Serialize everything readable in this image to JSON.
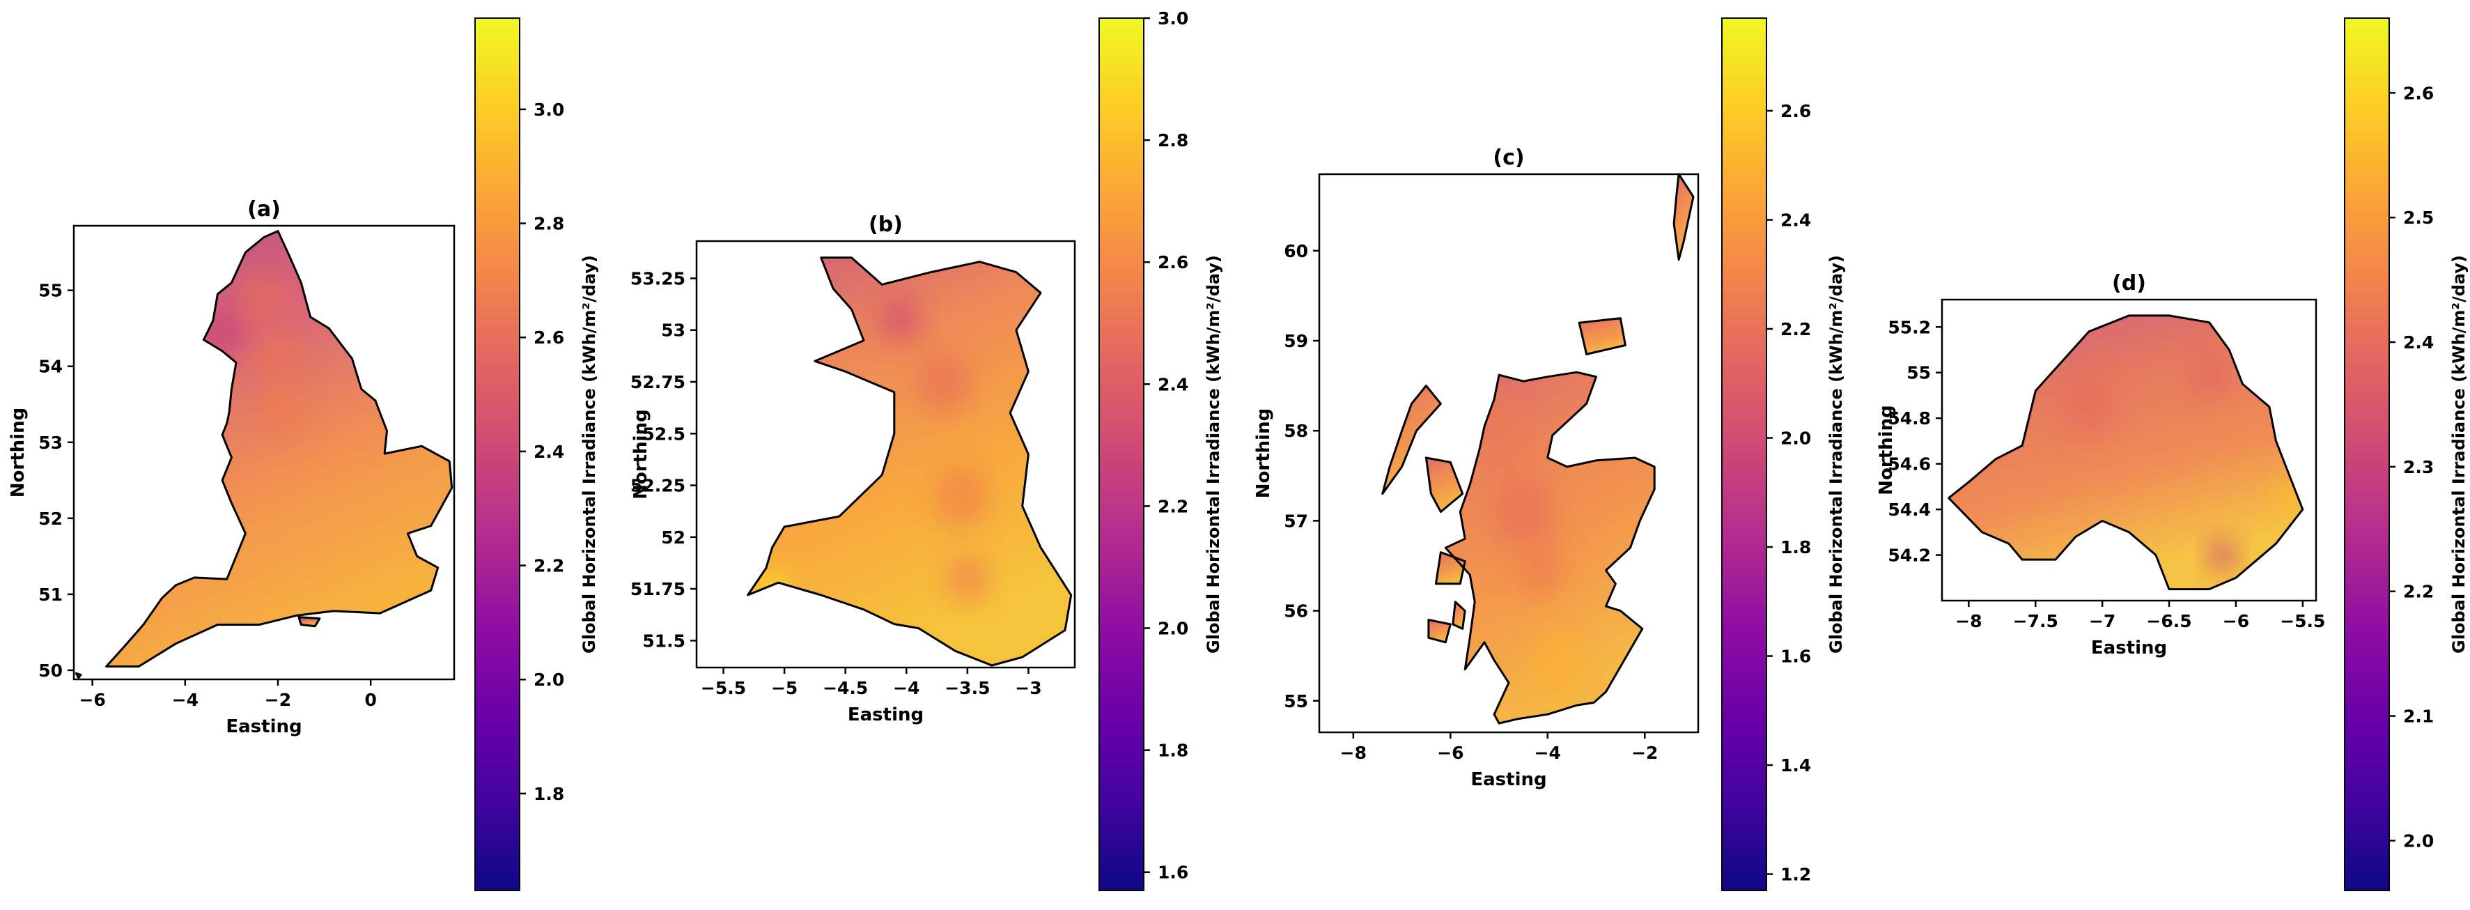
{
  "colors": {
    "cmap": [
      "#0d0887",
      "#41049d",
      "#6a00a8",
      "#8f0da4",
      "#b12a90",
      "#cc4778",
      "#e16462",
      "#f2844b",
      "#fca636",
      "#fcce25",
      "#f0f921"
    ],
    "land_colors": {
      "a": [
        "#b94f86",
        "#d8677a",
        "#f29250",
        "#f7b23e"
      ],
      "b": [
        "#d35d7a",
        "#ee8a58",
        "#f8a83e",
        "#f6c43b"
      ],
      "c": [
        "#dc6a70",
        "#ec8458",
        "#f49a4b",
        "#f5b845"
      ],
      "d": [
        "#cf5f82",
        "#e57860",
        "#f08c55",
        "#f6c444"
      ]
    },
    "coast": "#000000"
  },
  "chart_data": [
    {
      "type": "heatmap",
      "title": "(a)",
      "xlabel": "Easting",
      "ylabel": "Northing",
      "xlim": [
        -6.4,
        1.8
      ],
      "ylim": [
        49.88,
        55.85
      ],
      "xticks": [
        -6,
        -4,
        -2,
        0
      ],
      "yticks": [
        50,
        51,
        52,
        53,
        54,
        55
      ],
      "colorbar": {
        "label": "Global Horizontal Irradiance (kWh/m²/day)",
        "min": 1.63,
        "max": 3.16,
        "ticks": [
          1.8,
          2.0,
          2.2,
          2.4,
          2.6,
          2.8,
          3.0
        ]
      },
      "outline": [
        [
          -5.7,
          50.05
        ],
        [
          -5.0,
          50.05
        ],
        [
          -4.2,
          50.35
        ],
        [
          -3.3,
          50.6
        ],
        [
          -2.4,
          50.6
        ],
        [
          -1.6,
          50.72
        ],
        [
          -0.8,
          50.78
        ],
        [
          0.2,
          50.75
        ],
        [
          1.3,
          51.05
        ],
        [
          1.45,
          51.35
        ],
        [
          1.0,
          51.5
        ],
        [
          0.8,
          51.8
        ],
        [
          1.3,
          51.9
        ],
        [
          1.75,
          52.4
        ],
        [
          1.7,
          52.75
        ],
        [
          1.1,
          52.95
        ],
        [
          0.3,
          52.85
        ],
        [
          0.35,
          53.15
        ],
        [
          0.1,
          53.55
        ],
        [
          -0.2,
          53.7
        ],
        [
          -0.4,
          54.1
        ],
        [
          -0.9,
          54.5
        ],
        [
          -1.3,
          54.65
        ],
        [
          -1.5,
          55.1
        ],
        [
          -1.75,
          55.45
        ],
        [
          -2.0,
          55.78
        ],
        [
          -2.3,
          55.7
        ],
        [
          -2.7,
          55.5
        ],
        [
          -3.0,
          55.1
        ],
        [
          -3.3,
          54.95
        ],
        [
          -3.4,
          54.6
        ],
        [
          -3.6,
          54.35
        ],
        [
          -3.2,
          54.2
        ],
        [
          -2.9,
          54.05
        ],
        [
          -3.0,
          53.7
        ],
        [
          -3.05,
          53.4
        ],
        [
          -3.1,
          53.25
        ],
        [
          -3.2,
          53.1
        ],
        [
          -3.0,
          52.8
        ],
        [
          -3.2,
          52.5
        ],
        [
          -3.0,
          52.2
        ],
        [
          -2.7,
          51.8
        ],
        [
          -3.1,
          51.2
        ],
        [
          -3.8,
          51.22
        ],
        [
          -4.2,
          51.12
        ],
        [
          -4.5,
          50.95
        ],
        [
          -4.9,
          50.6
        ],
        [
          -5.3,
          50.32
        ],
        [
          -5.7,
          50.05
        ]
      ],
      "islands": [
        [
          [
            -1.55,
            50.7
          ],
          [
            -1.1,
            50.68
          ],
          [
            -1.2,
            50.58
          ],
          [
            -1.5,
            50.6
          ],
          [
            -1.55,
            50.7
          ]
        ],
        [
          [
            -6.35,
            49.96
          ],
          [
            -6.25,
            49.94
          ],
          [
            -6.3,
            49.9
          ],
          [
            -6.35,
            49.96
          ]
        ]
      ],
      "blobs": [
        {
          "x": -3.2,
          "y": 54.45,
          "r": 0.45,
          "value": 2.38
        },
        {
          "x": -2.3,
          "y": 54.9,
          "r": 0.55,
          "value": 2.58
        },
        {
          "x": -2.0,
          "y": 54.1,
          "r": 0.5,
          "value": 2.62
        },
        {
          "x": -1.9,
          "y": 53.4,
          "r": 0.5,
          "value": 2.66
        }
      ]
    },
    {
      "type": "heatmap",
      "title": "(b)",
      "xlabel": "Easting",
      "ylabel": "Northing",
      "xlim": [
        -5.72,
        -2.62
      ],
      "ylim": [
        51.37,
        53.43
      ],
      "xticks": [
        -5.5,
        -5.0,
        -4.5,
        -4.0,
        -3.5,
        -3.0
      ],
      "yticks": [
        51.5,
        51.75,
        52.0,
        52.25,
        52.5,
        52.75,
        53.0,
        53.25
      ],
      "colorbar": {
        "label": "Global Horizontal Irradiance (kWh/m²/day)",
        "min": 1.57,
        "max": 3.0,
        "ticks": [
          1.6,
          1.8,
          2.0,
          2.2,
          2.4,
          2.6,
          2.8,
          3.0
        ]
      },
      "outline": [
        [
          -5.3,
          51.72
        ],
        [
          -5.05,
          51.78
        ],
        [
          -4.7,
          51.72
        ],
        [
          -4.35,
          51.65
        ],
        [
          -4.1,
          51.58
        ],
        [
          -3.9,
          51.56
        ],
        [
          -3.6,
          51.45
        ],
        [
          -3.3,
          51.38
        ],
        [
          -3.05,
          51.42
        ],
        [
          -2.7,
          51.55
        ],
        [
          -2.65,
          51.72
        ],
        [
          -2.9,
          51.95
        ],
        [
          -3.05,
          52.15
        ],
        [
          -3.0,
          52.4
        ],
        [
          -3.15,
          52.6
        ],
        [
          -3.0,
          52.8
        ],
        [
          -3.1,
          53.0
        ],
        [
          -2.9,
          53.18
        ],
        [
          -3.1,
          53.28
        ],
        [
          -3.4,
          53.33
        ],
        [
          -3.8,
          53.28
        ],
        [
          -4.2,
          53.22
        ],
        [
          -4.45,
          53.35
        ],
        [
          -4.7,
          53.35
        ],
        [
          -4.6,
          53.2
        ],
        [
          -4.45,
          53.1
        ],
        [
          -4.35,
          52.95
        ],
        [
          -4.75,
          52.85
        ],
        [
          -4.5,
          52.8
        ],
        [
          -4.1,
          52.7
        ],
        [
          -4.1,
          52.5
        ],
        [
          -4.2,
          52.3
        ],
        [
          -4.55,
          52.1
        ],
        [
          -5.0,
          52.05
        ],
        [
          -5.1,
          51.95
        ],
        [
          -5.15,
          51.85
        ],
        [
          -5.3,
          51.72
        ]
      ],
      "islands": [],
      "blobs": [
        {
          "x": -4.05,
          "y": 53.05,
          "r": 0.16,
          "value": 2.33
        },
        {
          "x": -3.7,
          "y": 52.75,
          "r": 0.22,
          "value": 2.5
        },
        {
          "x": -3.55,
          "y": 52.2,
          "r": 0.22,
          "value": 2.58
        },
        {
          "x": -3.5,
          "y": 51.8,
          "r": 0.16,
          "value": 2.56
        },
        {
          "x": -5.1,
          "y": 51.75,
          "r": 0.14,
          "value": 2.92
        }
      ]
    },
    {
      "type": "heatmap",
      "title": "(c)",
      "xlabel": "Easting",
      "ylabel": "Northing",
      "xlim": [
        -8.7,
        -0.9
      ],
      "ylim": [
        54.65,
        60.85
      ],
      "xticks": [
        -8,
        -6,
        -4,
        -2
      ],
      "yticks": [
        55,
        56,
        57,
        58,
        59,
        60
      ],
      "colorbar": {
        "label": "Global Horizontal Irradiance (kWh/m²/day)",
        "min": 1.17,
        "max": 2.77,
        "ticks": [
          1.2,
          1.4,
          1.6,
          1.8,
          2.0,
          2.2,
          2.4,
          2.6
        ]
      },
      "outline": [
        [
          -5.0,
          54.75
        ],
        [
          -4.6,
          54.8
        ],
        [
          -4.0,
          54.85
        ],
        [
          -3.4,
          54.95
        ],
        [
          -3.05,
          54.98
        ],
        [
          -2.8,
          55.1
        ],
        [
          -2.05,
          55.8
        ],
        [
          -2.5,
          56.0
        ],
        [
          -2.8,
          56.05
        ],
        [
          -2.6,
          56.3
        ],
        [
          -2.8,
          56.45
        ],
        [
          -2.3,
          56.7
        ],
        [
          -2.1,
          57.0
        ],
        [
          -1.8,
          57.35
        ],
        [
          -1.8,
          57.6
        ],
        [
          -2.2,
          57.7
        ],
        [
          -3.0,
          57.67
        ],
        [
          -3.6,
          57.6
        ],
        [
          -4.0,
          57.7
        ],
        [
          -3.9,
          57.95
        ],
        [
          -3.2,
          58.3
        ],
        [
          -3.0,
          58.6
        ],
        [
          -3.4,
          58.65
        ],
        [
          -4.0,
          58.6
        ],
        [
          -4.5,
          58.55
        ],
        [
          -5.0,
          58.62
        ],
        [
          -5.1,
          58.35
        ],
        [
          -5.3,
          58.05
        ],
        [
          -5.4,
          57.8
        ],
        [
          -5.6,
          57.4
        ],
        [
          -5.8,
          57.1
        ],
        [
          -5.7,
          56.8
        ],
        [
          -6.1,
          56.7
        ],
        [
          -5.6,
          56.4
        ],
        [
          -5.5,
          56.1
        ],
        [
          -5.6,
          55.7
        ],
        [
          -5.7,
          55.35
        ],
        [
          -5.3,
          55.65
        ],
        [
          -5.1,
          55.45
        ],
        [
          -4.8,
          55.2
        ],
        [
          -5.1,
          54.85
        ],
        [
          -5.0,
          54.75
        ]
      ],
      "islands": [
        [
          [
            -6.5,
            58.5
          ],
          [
            -6.2,
            58.3
          ],
          [
            -6.7,
            58.0
          ],
          [
            -7.0,
            57.6
          ],
          [
            -7.4,
            57.3
          ],
          [
            -7.25,
            57.6
          ],
          [
            -7.0,
            58.0
          ],
          [
            -6.8,
            58.3
          ],
          [
            -6.5,
            58.5
          ]
        ],
        [
          [
            -6.5,
            57.7
          ],
          [
            -6.0,
            57.65
          ],
          [
            -5.75,
            57.3
          ],
          [
            -6.2,
            57.1
          ],
          [
            -6.4,
            57.3
          ],
          [
            -6.5,
            57.7
          ]
        ],
        [
          [
            -6.2,
            56.65
          ],
          [
            -5.7,
            56.55
          ],
          [
            -5.8,
            56.3
          ],
          [
            -6.3,
            56.3
          ],
          [
            -6.2,
            56.65
          ]
        ],
        [
          [
            -6.45,
            55.9
          ],
          [
            -6.0,
            55.85
          ],
          [
            -6.1,
            55.65
          ],
          [
            -6.45,
            55.7
          ],
          [
            -6.45,
            55.9
          ]
        ],
        [
          [
            -5.9,
            56.1
          ],
          [
            -5.7,
            56.0
          ],
          [
            -5.75,
            55.8
          ],
          [
            -5.95,
            55.85
          ],
          [
            -5.9,
            56.1
          ]
        ],
        [
          [
            -3.35,
            59.2
          ],
          [
            -2.5,
            59.25
          ],
          [
            -2.4,
            58.95
          ],
          [
            -3.2,
            58.85
          ],
          [
            -3.35,
            59.2
          ]
        ],
        [
          [
            -1.3,
            60.85
          ],
          [
            -1.0,
            60.6
          ],
          [
            -1.2,
            60.1
          ],
          [
            -1.3,
            59.9
          ],
          [
            -1.4,
            60.3
          ],
          [
            -1.35,
            60.6
          ],
          [
            -1.3,
            60.85
          ]
        ]
      ],
      "blobs": [
        {
          "x": -4.5,
          "y": 57.1,
          "r": 0.6,
          "value": 2.2
        },
        {
          "x": -4.2,
          "y": 56.5,
          "r": 0.5,
          "value": 2.26
        },
        {
          "x": -3.8,
          "y": 55.4,
          "r": 0.5,
          "value": 2.48
        },
        {
          "x": -5.0,
          "y": 58.1,
          "r": 0.4,
          "value": 2.24
        }
      ]
    },
    {
      "type": "heatmap",
      "title": "(d)",
      "xlabel": "Easting",
      "ylabel": "Northing",
      "xlim": [
        -8.2,
        -5.4
      ],
      "ylim": [
        54.0,
        55.32
      ],
      "xticks": [
        -8.0,
        -7.5,
        -7.0,
        -6.5,
        -6.0,
        -5.5
      ],
      "yticks": [
        54.2,
        54.4,
        54.6,
        54.8,
        55.0,
        55.2
      ],
      "colorbar": {
        "label": "Global Horizontal Irradiance (kWh/m²/day)",
        "min": 1.96,
        "max": 2.66,
        "ticks": [
          2.0,
          2.1,
          2.2,
          2.3,
          2.4,
          2.5,
          2.6
        ]
      },
      "outline": [
        [
          -8.15,
          54.45
        ],
        [
          -8.0,
          54.52
        ],
        [
          -7.8,
          54.62
        ],
        [
          -7.6,
          54.68
        ],
        [
          -7.5,
          54.92
        ],
        [
          -7.3,
          55.05
        ],
        [
          -7.1,
          55.18
        ],
        [
          -6.8,
          55.25
        ],
        [
          -6.5,
          55.25
        ],
        [
          -6.2,
          55.22
        ],
        [
          -6.05,
          55.1
        ],
        [
          -5.95,
          54.95
        ],
        [
          -5.75,
          54.85
        ],
        [
          -5.7,
          54.7
        ],
        [
          -5.6,
          54.55
        ],
        [
          -5.5,
          54.4
        ],
        [
          -5.7,
          54.25
        ],
        [
          -6.0,
          54.1
        ],
        [
          -6.2,
          54.05
        ],
        [
          -6.5,
          54.05
        ],
        [
          -6.6,
          54.2
        ],
        [
          -6.8,
          54.3
        ],
        [
          -7.0,
          54.35
        ],
        [
          -7.2,
          54.28
        ],
        [
          -7.35,
          54.18
        ],
        [
          -7.6,
          54.18
        ],
        [
          -7.7,
          54.25
        ],
        [
          -7.9,
          54.3
        ],
        [
          -8.15,
          54.45
        ]
      ],
      "islands": [],
      "blobs": [
        {
          "x": -6.2,
          "y": 54.98,
          "r": 0.12,
          "value": 2.38
        },
        {
          "x": -7.1,
          "y": 54.85,
          "r": 0.18,
          "value": 2.4
        },
        {
          "x": -6.1,
          "y": 54.2,
          "r": 0.1,
          "value": 2.3
        },
        {
          "x": -5.6,
          "y": 54.45,
          "r": 0.12,
          "value": 2.56
        }
      ]
    }
  ]
}
